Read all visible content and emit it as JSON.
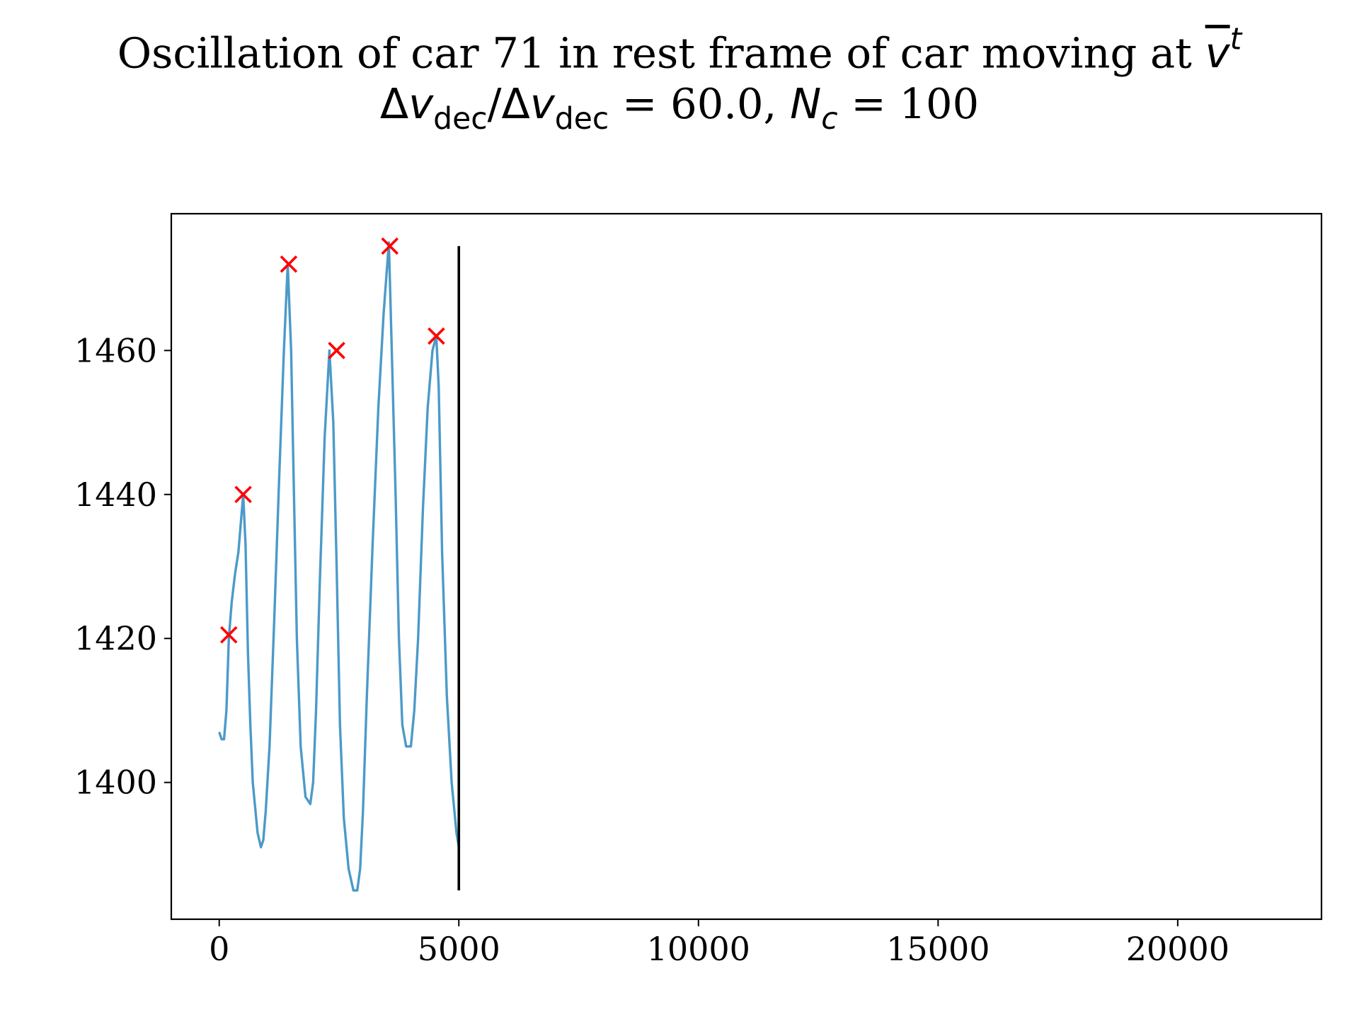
{
  "chart_data": {
    "type": "line",
    "title_line1_text": "Oscillation of car 71 in rest frame of car moving at ",
    "title_line1_var": "v",
    "title_line1_sup": "t",
    "title_line2": {
      "delta1": "Δ",
      "v1": "v",
      "sub1": "dec",
      "slash": "/",
      "delta2": "Δ",
      "v2": "v",
      "sub2": "dec",
      "eq1": " = 60.0, ",
      "n": "N",
      "nsub": "c",
      "eq2": " = 100"
    },
    "xlabel": "",
    "ylabel": "",
    "xlim": [
      -1000,
      23000
    ],
    "ylim": [
      1381,
      1479
    ],
    "xticks": [
      0,
      5000,
      10000,
      15000,
      20000
    ],
    "yticks": [
      1400,
      1420,
      1440,
      1460
    ],
    "grid": false,
    "series": [
      {
        "color": "#4c9ac8",
        "x": [
          0,
          50,
          100,
          150,
          200,
          260,
          330,
          400,
          450,
          500,
          550,
          600,
          650,
          700,
          800,
          870,
          920,
          970,
          1050,
          1150,
          1250,
          1350,
          1430,
          1500,
          1560,
          1620,
          1700,
          1800,
          1900,
          1960,
          2020,
          2100,
          2200,
          2300,
          2380,
          2450,
          2520,
          2600,
          2700,
          2800,
          2880,
          2940,
          3000,
          3080,
          3200,
          3320,
          3430,
          3540,
          3600,
          3680,
          3750,
          3820,
          3900,
          4000,
          4070,
          4150,
          4250,
          4350,
          4450,
          4530,
          4580,
          4650,
          4750,
          4850,
          4950,
          5000
        ],
        "y": [
          1407,
          1406,
          1406,
          1410,
          1420,
          1425,
          1429,
          1432,
          1436,
          1440,
          1433,
          1418,
          1408,
          1400,
          1393,
          1391,
          1392,
          1396,
          1405,
          1423,
          1442,
          1460,
          1472,
          1460,
          1440,
          1420,
          1405,
          1398,
          1397,
          1400,
          1410,
          1428,
          1448,
          1460,
          1450,
          1430,
          1408,
          1395,
          1388,
          1385,
          1385,
          1388,
          1396,
          1412,
          1433,
          1452,
          1465,
          1475,
          1460,
          1440,
          1420,
          1408,
          1405,
          1405,
          1410,
          1420,
          1438,
          1452,
          1460,
          1462,
          1455,
          1432,
          1412,
          1400,
          1393,
          1391
        ]
      }
    ],
    "peaks": {
      "color": "#ff0000",
      "marker": "x",
      "x": [
        200,
        500,
        1450,
        2450,
        3560,
        4530
      ],
      "y": [
        1420.5,
        1440,
        1472,
        1460,
        1474.5,
        1462
      ]
    },
    "vline": {
      "x": 5000,
      "ymin": 1385,
      "ymax": 1474.5,
      "color": "#000000"
    }
  }
}
